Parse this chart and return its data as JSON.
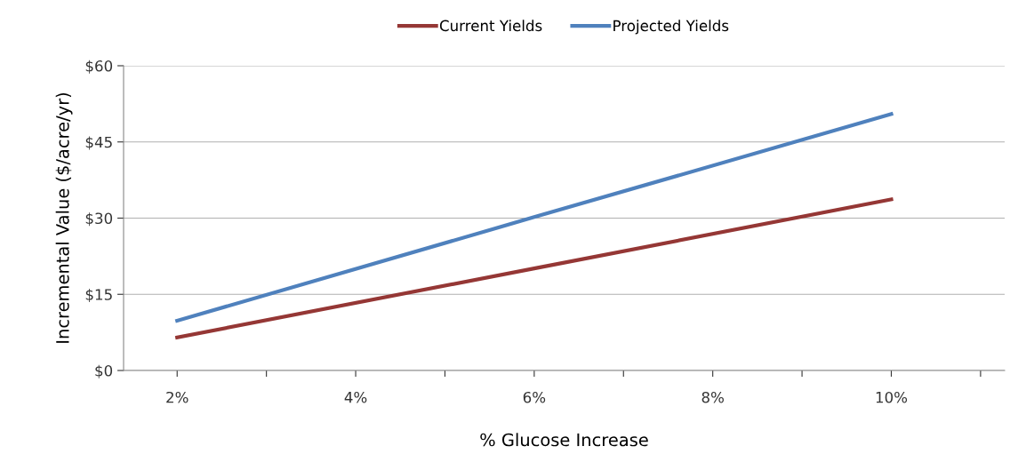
{
  "chart_data": {
    "type": "line",
    "xlabel": "% Glucose Increase",
    "ylabel": "Incremental Value ($/acre/yr)",
    "x": [
      2,
      6,
      10
    ],
    "series": [
      {
        "name": "Current Yields",
        "color": "#953735",
        "values": [
          6.5,
          20.1,
          33.7
        ]
      },
      {
        "name": "Projected Yields",
        "color": "#4f81bd",
        "values": [
          9.8,
          30.2,
          50.5
        ]
      }
    ],
    "xlim": [
      1.4,
      11.27
    ],
    "xticks": [
      {
        "value": 2,
        "label": "2%"
      },
      {
        "value": 3,
        "label": null
      },
      {
        "value": 4,
        "label": "4%"
      },
      {
        "value": 5,
        "label": null
      },
      {
        "value": 6,
        "label": "6%"
      },
      {
        "value": 7,
        "label": null
      },
      {
        "value": 8,
        "label": "8%"
      },
      {
        "value": 9,
        "label": null
      },
      {
        "value": 10,
        "label": "10%"
      },
      {
        "value": 11,
        "label": null
      }
    ],
    "ylim": [
      0,
      60
    ],
    "yticks": [
      {
        "value": 0,
        "label": "$0"
      },
      {
        "value": 15,
        "label": "$15"
      },
      {
        "value": 30,
        "label": "$30"
      },
      {
        "value": 45,
        "label": "$45"
      },
      {
        "value": 60,
        "label": "$60"
      }
    ],
    "grid": "y",
    "legend": "top",
    "marker": "none",
    "line_style": "solid"
  }
}
